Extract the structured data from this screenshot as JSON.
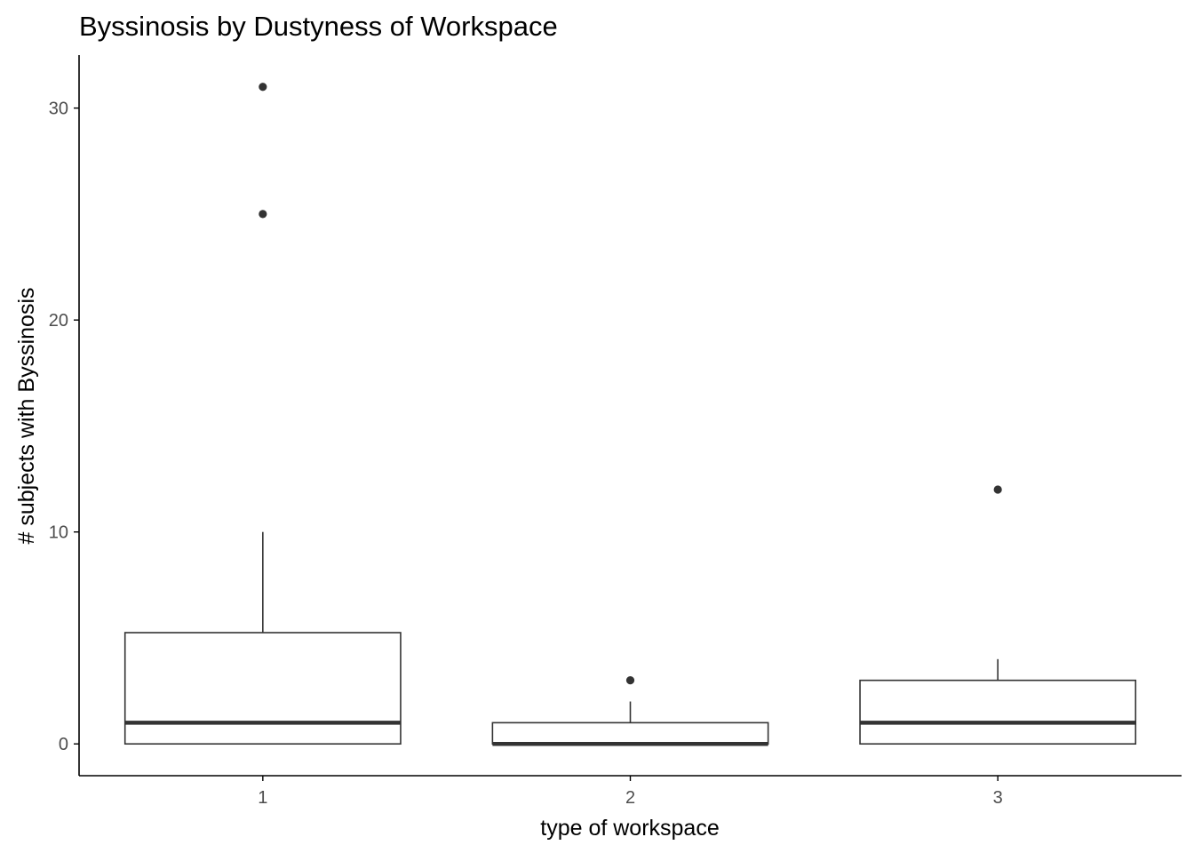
{
  "chart_data": {
    "type": "boxplot",
    "title": "Byssinosis by Dustyness of Workspace",
    "xlabel": "type of workspace",
    "ylabel": "# subjects with Byssinosis",
    "categories": [
      "1",
      "2",
      "3"
    ],
    "ylim": [
      -1.5,
      32.5
    ],
    "yticks": [
      0,
      10,
      20,
      30
    ],
    "grid": false,
    "boxes": [
      {
        "category": "1",
        "whisker_low": 0,
        "q1": 0,
        "median": 1,
        "q3": 5.25,
        "whisker_high": 10,
        "outliers": [
          25,
          31
        ]
      },
      {
        "category": "2",
        "whisker_low": 0,
        "q1": 0,
        "median": 0,
        "q3": 1,
        "whisker_high": 2,
        "outliers": [
          3
        ]
      },
      {
        "category": "3",
        "whisker_low": 0,
        "q1": 0,
        "median": 1,
        "q3": 3,
        "whisker_high": 4,
        "outliers": [
          12
        ]
      }
    ],
    "colors": {
      "box_stroke": "#333333",
      "box_fill": "#ffffff",
      "outlier": "#333333",
      "axis": "#000000",
      "tick_label": "#4d4d4d"
    }
  }
}
